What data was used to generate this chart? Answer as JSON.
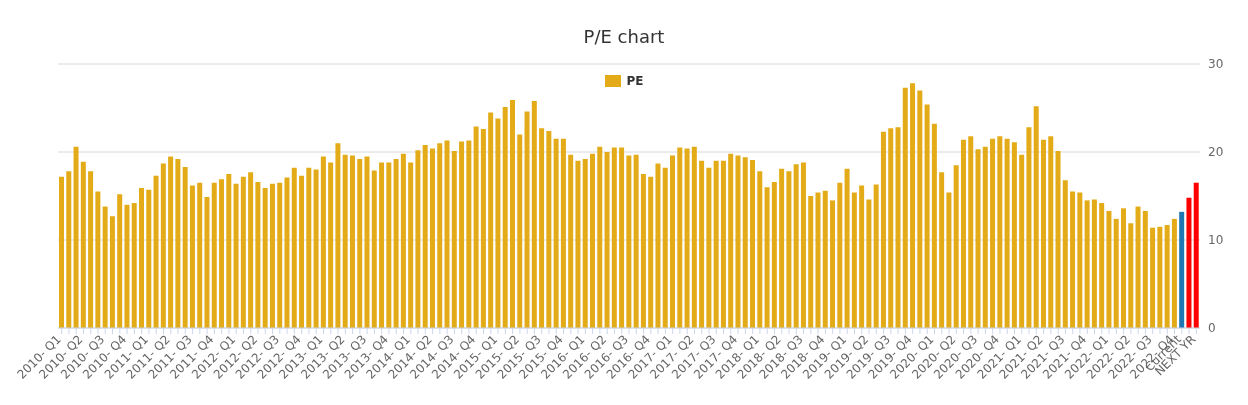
{
  "chart_data": {
    "type": "bar",
    "title": "P/E chart",
    "categories": [
      "2010- Q1",
      null,
      null,
      "2010- Q2",
      null,
      null,
      "2010- Q3",
      null,
      null,
      "2010- Q4",
      null,
      null,
      "2011- Q1",
      null,
      null,
      "2011- Q2",
      null,
      null,
      "2011- Q3",
      null,
      null,
      "2011- Q4",
      null,
      null,
      "2012- Q1",
      null,
      null,
      "2012- Q2",
      null,
      null,
      "2012- Q3",
      null,
      null,
      "2012- Q4",
      null,
      null,
      "2013- Q1",
      null,
      null,
      "2013- Q2",
      null,
      null,
      "2013- Q3",
      null,
      null,
      "2013- Q4",
      null,
      null,
      "2014- Q1",
      null,
      null,
      "2014- Q2",
      null,
      null,
      "2014- Q3",
      null,
      null,
      "2014- Q4",
      null,
      null,
      "2015- Q1",
      null,
      null,
      "2015- Q2",
      null,
      null,
      "2015- Q3",
      null,
      null,
      "2015- Q4",
      null,
      null,
      "2016- Q1",
      null,
      null,
      "2016- Q2",
      null,
      null,
      "2016- Q3",
      null,
      null,
      "2016- Q4",
      null,
      null,
      "2017- Q1",
      null,
      null,
      "2017- Q2",
      null,
      null,
      "2017- Q3",
      null,
      null,
      "2017- Q4",
      null,
      null,
      "2018- Q1",
      null,
      null,
      "2018- Q2",
      null,
      null,
      "2018- Q3",
      null,
      null,
      "2018- Q4",
      null,
      null,
      "2019- Q1",
      null,
      null,
      "2019- Q2",
      null,
      null,
      "2019- Q3",
      null,
      null,
      "2019- Q4",
      null,
      null,
      "2020- Q1",
      null,
      null,
      "2020- Q2",
      null,
      null,
      "2020- Q3",
      null,
      null,
      "2020- Q4",
      null,
      null,
      "2021- Q1",
      null,
      null,
      "2021- Q2",
      null,
      null,
      "2021- Q3",
      null,
      null,
      "2021- Q4",
      null,
      null,
      "2022- Q1",
      null,
      null,
      "2022- Q2",
      null,
      null,
      "2022- Q3",
      null,
      null,
      "2022- Q4",
      "Current",
      null,
      "NEXT YR"
    ],
    "series": [
      {
        "name": "PE",
        "color": "#e3ab17",
        "values": [
          17.2,
          17.8,
          20.6,
          18.9,
          17.8,
          15.5,
          13.8,
          12.7,
          15.2,
          14.0,
          14.2,
          15.9,
          15.7,
          17.3,
          18.7,
          19.5,
          19.2,
          18.3,
          16.2,
          16.5,
          14.9,
          16.5,
          16.9,
          17.5,
          16.4,
          17.2,
          17.7,
          16.6,
          15.9,
          16.4,
          16.5,
          17.1,
          18.2,
          17.3,
          18.2,
          18.0,
          19.5,
          18.8,
          21.0,
          19.7,
          19.6,
          19.2,
          19.5,
          17.9,
          18.8,
          18.8,
          19.2,
          19.8,
          18.8,
          20.2,
          20.8,
          20.4,
          21.0,
          21.3,
          20.1,
          21.2,
          21.3,
          22.9,
          22.6,
          24.5,
          23.8,
          25.1,
          25.9,
          22.0,
          24.6,
          25.8,
          22.7,
          22.4,
          21.5,
          21.5,
          19.7,
          19.0,
          19.2,
          19.8,
          20.6,
          20.0,
          20.5,
          20.5,
          19.6,
          19.7,
          17.5,
          17.2,
          18.7,
          18.2,
          19.6,
          20.5,
          20.4,
          20.6,
          19.0,
          18.2,
          19.0,
          19.0,
          19.8,
          19.6,
          19.4,
          19.1,
          17.8,
          16.0,
          16.6,
          18.1,
          17.8,
          18.6,
          18.8,
          15.0,
          15.4,
          15.6,
          14.5,
          16.5,
          18.1,
          15.4,
          16.2,
          14.6,
          16.3,
          22.3,
          22.7,
          22.8,
          27.3,
          27.8,
          27.0,
          25.4,
          23.2,
          17.7,
          15.4,
          18.5,
          21.4,
          21.8,
          20.3,
          20.6,
          21.5,
          21.8,
          21.5,
          21.1,
          19.7,
          22.8,
          25.2,
          21.4,
          21.8,
          20.1,
          16.8,
          15.5,
          15.4,
          14.5,
          14.6,
          14.2,
          13.3,
          12.4,
          13.6,
          11.9,
          13.8,
          13.3,
          11.4,
          11.5,
          11.7,
          12.4,
          13.2,
          14.8,
          16.5
        ],
        "colors": [
          "#e3ab17",
          "#e3ab17",
          "#e3ab17",
          "#e3ab17",
          "#e3ab17",
          "#e3ab17",
          "#e3ab17",
          "#e3ab17",
          "#e3ab17",
          "#e3ab17",
          "#e3ab17",
          "#e3ab17",
          "#e3ab17",
          "#e3ab17",
          "#e3ab17",
          "#e3ab17",
          "#e3ab17",
          "#e3ab17",
          "#e3ab17",
          "#e3ab17",
          "#e3ab17",
          "#e3ab17",
          "#e3ab17",
          "#e3ab17",
          "#e3ab17",
          "#e3ab17",
          "#e3ab17",
          "#e3ab17",
          "#e3ab17",
          "#e3ab17",
          "#e3ab17",
          "#e3ab17",
          "#e3ab17",
          "#e3ab17",
          "#e3ab17",
          "#e3ab17",
          "#e3ab17",
          "#e3ab17",
          "#e3ab17",
          "#e3ab17",
          "#e3ab17",
          "#e3ab17",
          "#e3ab17",
          "#e3ab17",
          "#e3ab17",
          "#e3ab17",
          "#e3ab17",
          "#e3ab17",
          "#e3ab17",
          "#e3ab17",
          "#e3ab17",
          "#e3ab17",
          "#e3ab17",
          "#e3ab17",
          "#e3ab17",
          "#e3ab17",
          "#e3ab17",
          "#e3ab17",
          "#e3ab17",
          "#e3ab17",
          "#e3ab17",
          "#e3ab17",
          "#e3ab17",
          "#e3ab17",
          "#e3ab17",
          "#e3ab17",
          "#e3ab17",
          "#e3ab17",
          "#e3ab17",
          "#e3ab17",
          "#e3ab17",
          "#e3ab17",
          "#e3ab17",
          "#e3ab17",
          "#e3ab17",
          "#e3ab17",
          "#e3ab17",
          "#e3ab17",
          "#e3ab17",
          "#e3ab17",
          "#e3ab17",
          "#e3ab17",
          "#e3ab17",
          "#e3ab17",
          "#e3ab17",
          "#e3ab17",
          "#e3ab17",
          "#e3ab17",
          "#e3ab17",
          "#e3ab17",
          "#e3ab17",
          "#e3ab17",
          "#e3ab17",
          "#e3ab17",
          "#e3ab17",
          "#e3ab17",
          "#e3ab17",
          "#e3ab17",
          "#e3ab17",
          "#e3ab17",
          "#e3ab17",
          "#e3ab17",
          "#e3ab17",
          "#e3ab17",
          "#e3ab17",
          "#e3ab17",
          "#e3ab17",
          "#e3ab17",
          "#e3ab17",
          "#e3ab17",
          "#e3ab17",
          "#e3ab17",
          "#e3ab17",
          "#e3ab17",
          "#e3ab17",
          "#e3ab17",
          "#e3ab17",
          "#e3ab17",
          "#e3ab17",
          "#e3ab17",
          "#e3ab17",
          "#e3ab17",
          "#e3ab17",
          "#e3ab17",
          "#e3ab17",
          "#e3ab17",
          "#e3ab17",
          "#e3ab17",
          "#e3ab17",
          "#e3ab17",
          "#e3ab17",
          "#e3ab17",
          "#e3ab17",
          "#e3ab17",
          "#e3ab17",
          "#e3ab17",
          "#e3ab17",
          "#e3ab17",
          "#e3ab17",
          "#e3ab17",
          "#e3ab17",
          "#e3ab17",
          "#e3ab17",
          "#e3ab17",
          "#e3ab17",
          "#e3ab17",
          "#e3ab17",
          "#e3ab17",
          "#e3ab17",
          "#e3ab17",
          "#e3ab17",
          "#e3ab17",
          "#e3ab17",
          "#e3ab17",
          "#1f77b4",
          "#ff0000",
          "#ff0000"
        ]
      }
    ],
    "ylim": [
      0,
      30
    ],
    "yticks": [
      0,
      10,
      20,
      30
    ],
    "grid": "y",
    "legend": "top"
  }
}
